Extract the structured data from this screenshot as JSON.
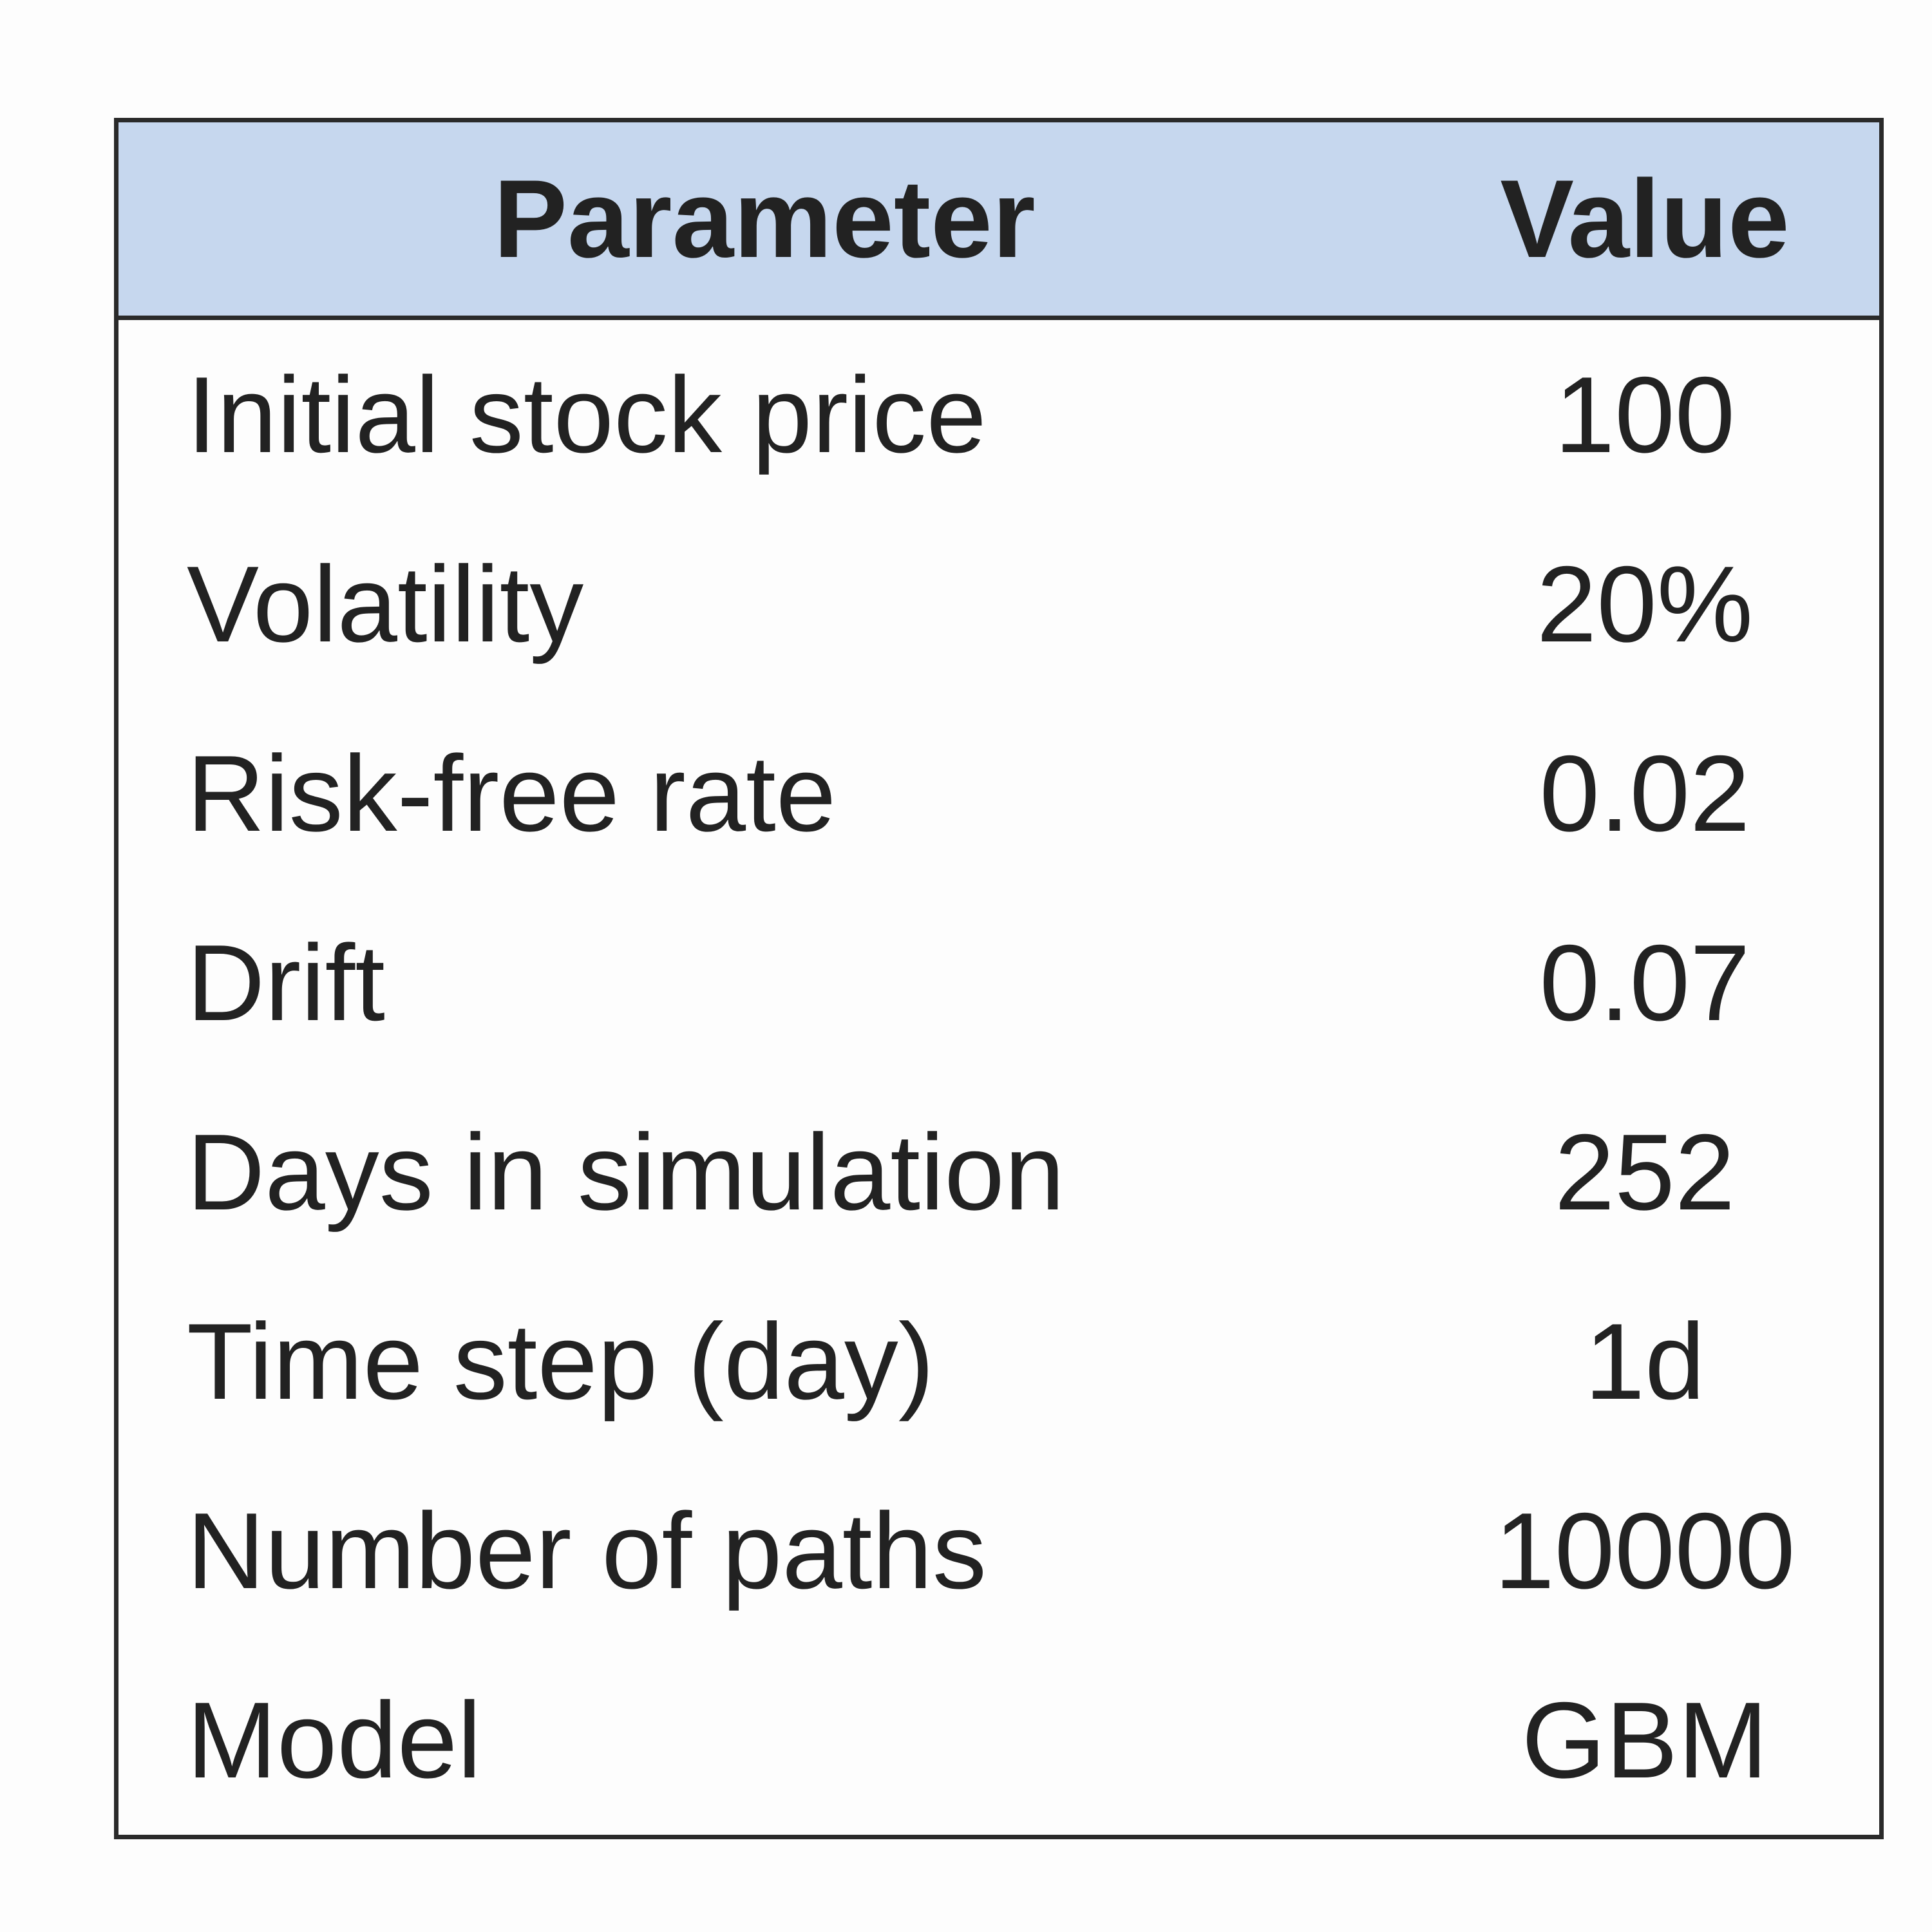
{
  "table": {
    "header": [
      "Parameter",
      "Value"
    ],
    "rows": [
      [
        "Initial stock price",
        "100"
      ],
      [
        "Volatility",
        "20%"
      ],
      [
        "Risk-free rate",
        "0.02"
      ],
      [
        "Drift",
        "0.07"
      ],
      [
        "Days in simulation",
        "252"
      ],
      [
        "Time step (day)",
        "1d"
      ],
      [
        "Number of paths",
        "10000"
      ],
      [
        "Model",
        "GBM"
      ]
    ]
  }
}
